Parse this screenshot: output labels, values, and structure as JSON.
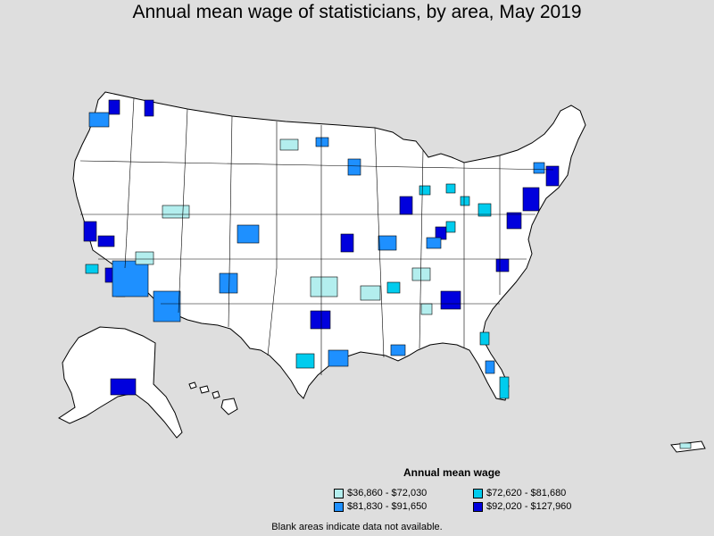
{
  "title": "Annual mean wage of statisticians, by area, May 2019",
  "legend": {
    "title": "Annual mean wage",
    "bins": [
      {
        "label": "$36,860 - $72,030",
        "color": "#b3eeee"
      },
      {
        "label": "$72,620 - $81,680",
        "color": "#00ccee"
      },
      {
        "label": "$81,830 - $91,650",
        "color": "#1e90ff"
      },
      {
        "label": "$92,020 - $127,960",
        "color": "#0000dd"
      }
    ]
  },
  "note": "Blank areas indicate data not available.",
  "colors": {
    "background": "#dedede",
    "land": "#ffffff",
    "border": "#000000"
  }
}
